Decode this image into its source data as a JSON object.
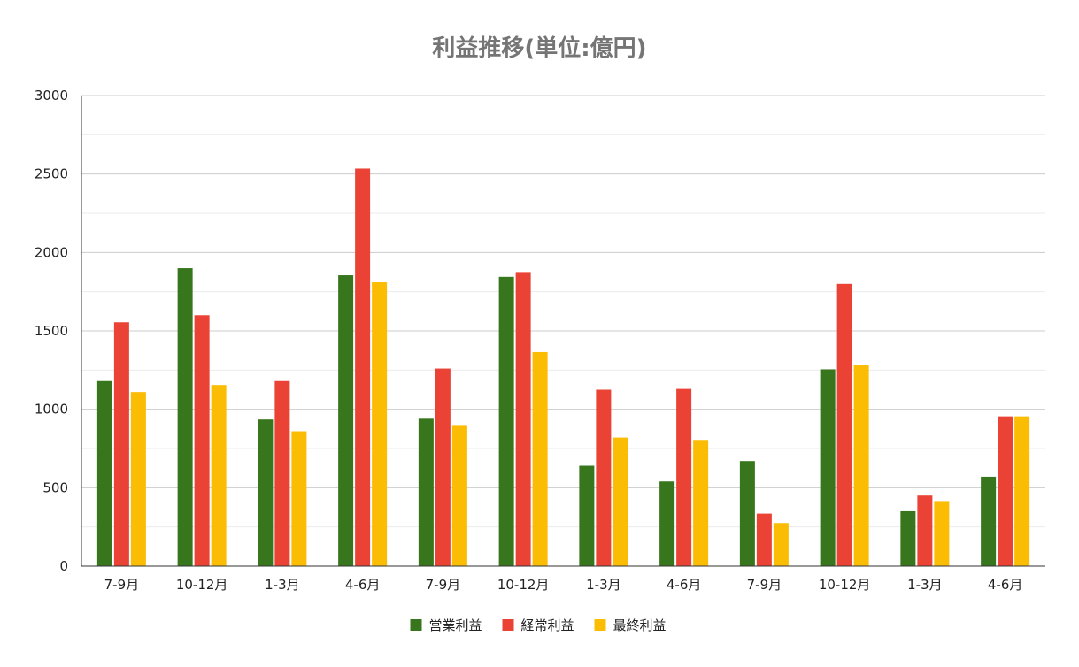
{
  "chart_data": {
    "type": "bar",
    "title": "利益推移(単位:億円)",
    "xlabel": "",
    "ylabel": "",
    "ylim": [
      0,
      3000
    ],
    "yticks": [
      "0",
      "500",
      "1000",
      "1500",
      "2000",
      "2500",
      "3000"
    ],
    "categories": [
      "7-9月",
      "10-12月",
      "1-3月",
      "4-6月",
      "7-9月",
      "10-12月",
      "1-3月",
      "4-6月",
      "7-9月",
      "10-12月",
      "1-3月",
      "4-6月"
    ],
    "series": [
      {
        "name": "営業利益",
        "color": "#38761d",
        "values": [
          1180,
          1900,
          935,
          1855,
          940,
          1845,
          640,
          540,
          670,
          1255,
          350,
          570
        ]
      },
      {
        "name": "経常利益",
        "color": "#ea4335",
        "values": [
          1555,
          1600,
          1180,
          2535,
          1260,
          1870,
          1125,
          1130,
          335,
          1800,
          450,
          955
        ]
      },
      {
        "name": "最終利益",
        "color": "#fbbc04",
        "values": [
          1110,
          1155,
          860,
          1810,
          900,
          1365,
          820,
          805,
          275,
          1280,
          415,
          955
        ]
      }
    ],
    "grid": true,
    "legend_position": "bottom"
  }
}
